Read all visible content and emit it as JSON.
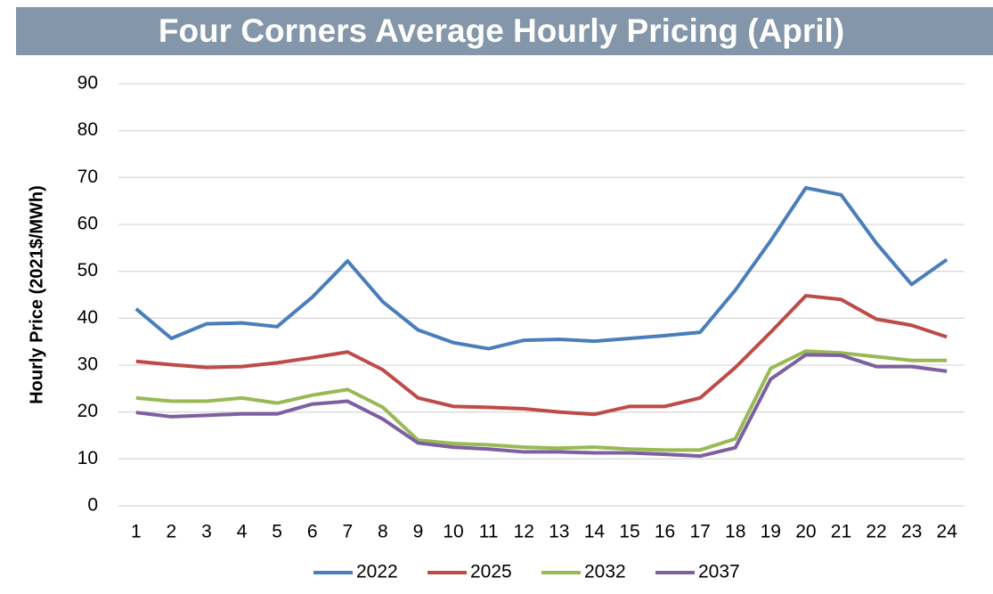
{
  "chart_data": {
    "type": "line",
    "title": "Four Corners Average Hourly Pricing (April)",
    "y_label": "Hourly Price (2021$/MWh)",
    "categories": [
      "1",
      "2",
      "3",
      "4",
      "5",
      "6",
      "7",
      "8",
      "9",
      "10",
      "11",
      "12",
      "13",
      "14",
      "15",
      "16",
      "17",
      "18",
      "19",
      "20",
      "21",
      "22",
      "23",
      "24"
    ],
    "series": [
      {
        "name": "2022",
        "color": "#4a7ebb",
        "values": [
          42,
          35.7,
          38.8,
          39,
          38.2,
          44.5,
          52.2,
          43.5,
          37.5,
          34.8,
          33.5,
          35.3,
          35.5,
          35.1,
          35.7,
          36.3,
          37,
          46,
          56.5,
          67.8,
          66.3,
          56,
          47.2,
          52.5
        ]
      },
      {
        "name": "2025",
        "color": "#be4b48",
        "values": [
          30.8,
          30.1,
          29.5,
          29.7,
          30.5,
          31.6,
          32.8,
          29,
          23,
          21.2,
          21,
          20.7,
          20,
          19.5,
          21.2,
          21.2,
          23,
          29.5,
          37,
          44.8,
          44,
          39.8,
          38.5,
          36
        ]
      },
      {
        "name": "2032",
        "color": "#98b954",
        "values": [
          23,
          22.3,
          22.3,
          23,
          21.9,
          23.6,
          24.8,
          21,
          14,
          13.3,
          13,
          12.5,
          12.3,
          12.5,
          12.1,
          11.9,
          11.9,
          14.3,
          29.3,
          33,
          32.6,
          31.8,
          31,
          31
        ]
      },
      {
        "name": "2037",
        "color": "#7d60a0",
        "values": [
          19.9,
          19,
          19.3,
          19.6,
          19.6,
          21.7,
          22.3,
          18.5,
          13.4,
          12.5,
          12.1,
          11.5,
          11.5,
          11.3,
          11.3,
          11,
          10.6,
          12.4,
          27,
          32.2,
          32.1,
          29.7,
          29.7,
          28.7
        ]
      }
    ],
    "ylim": [
      0,
      90
    ],
    "yticks": [
      0,
      10,
      20,
      30,
      40,
      50,
      60,
      70,
      80,
      90
    ],
    "grid": true,
    "legend": "bottom"
  }
}
